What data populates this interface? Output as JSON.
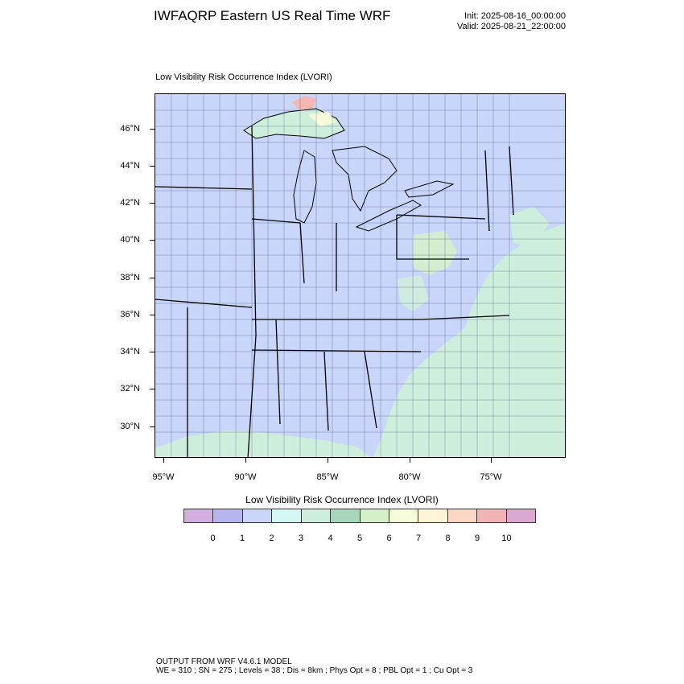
{
  "header": {
    "title": "IWFAQRP Eastern US Real Time WRF",
    "init": "Init: 2025-08-16_00:00:00",
    "valid": "Valid: 2025-08-21_22:00:00"
  },
  "map": {
    "field_label": "Low Visibility Risk Occurrence Index   (LVORI)",
    "lat_labels": [
      "46°N",
      "44°N",
      "42°N",
      "40°N",
      "38°N",
      "36°N",
      "34°N",
      "32°N",
      "30°N"
    ],
    "lon_labels": [
      "95°W",
      "90°W",
      "85°W",
      "80°W",
      "75°W"
    ],
    "colors": {
      "land_dominant": "#c9d6fa",
      "water_dominant": "#cdeedb",
      "lakes": "#c9d6fa",
      "green_patches": "#bfe8c6",
      "highlight_red": "#f5b7b1"
    }
  },
  "colorbar": {
    "title": "Low Visibility Risk Occurrence Index  (LVORI)",
    "colors": [
      "#d3aede",
      "#b5b5ef",
      "#c9d6fa",
      "#d4f8f4",
      "#cdeedb",
      "#a7d6bb",
      "#d5f0c9",
      "#f6fcd9",
      "#fff5d6",
      "#fcd8c4",
      "#f1b3b3",
      "#dba8d1"
    ],
    "ticks": [
      "0",
      "1",
      "2",
      "3",
      "4",
      "5",
      "6",
      "7",
      "8",
      "9",
      "10"
    ]
  },
  "footer": {
    "line1": "OUTPUT FROM WRF V4.6.1 MODEL",
    "line2": "WE = 310 ; SN = 275 ; Levels = 38 ; Dis = 8km ; Phys Opt = 8 ; PBL Opt = 1 ; Cu Opt = 3"
  }
}
